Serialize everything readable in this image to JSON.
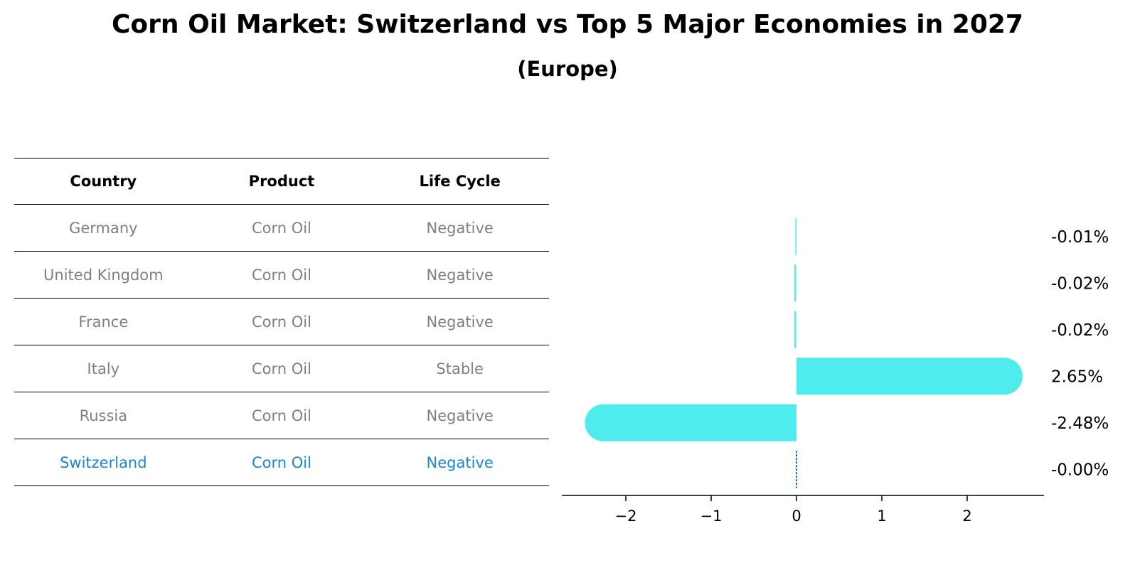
{
  "title": "Corn Oil Market: Switzerland vs Top 5 Major Economies in 2027",
  "subtitle": "(Europe)",
  "table": {
    "headers": [
      "Country",
      "Product",
      "Life Cycle"
    ],
    "rows": [
      {
        "country": "Germany",
        "product": "Corn Oil",
        "life_cycle": "Negative"
      },
      {
        "country": "United Kingdom",
        "product": "Corn Oil",
        "life_cycle": "Negative"
      },
      {
        "country": "France",
        "product": "Corn Oil",
        "life_cycle": "Negative"
      },
      {
        "country": "Italy",
        "product": "Corn Oil",
        "life_cycle": "Stable"
      },
      {
        "country": "Russia",
        "product": "Corn Oil",
        "life_cycle": "Negative"
      },
      {
        "country": "Switzerland",
        "product": "Corn Oil",
        "life_cycle": "Negative"
      }
    ],
    "highlight_color": "#1a86d0",
    "text_color": "#808080"
  },
  "chart_data": {
    "type": "bar",
    "orientation": "horizontal",
    "categories": [
      "Germany",
      "United Kingdom",
      "France",
      "Italy",
      "Russia",
      "Switzerland"
    ],
    "values": [
      -0.01,
      -0.02,
      -0.02,
      2.65,
      -2.48,
      -0.004
    ],
    "value_labels": [
      "-0.01%",
      "-0.02%",
      "-0.02%",
      "2.65%",
      "-2.48%",
      "-0.00%"
    ],
    "xlim": [
      -2.75,
      2.9
    ],
    "xticks": [
      -2,
      -1,
      0,
      1,
      2
    ],
    "xtick_labels": [
      "−2",
      "−1",
      "0",
      "1",
      "2"
    ],
    "bar_color": "#4eecec",
    "highlight_index": 5,
    "highlight_color": "#1a6fb0",
    "grid": false
  }
}
